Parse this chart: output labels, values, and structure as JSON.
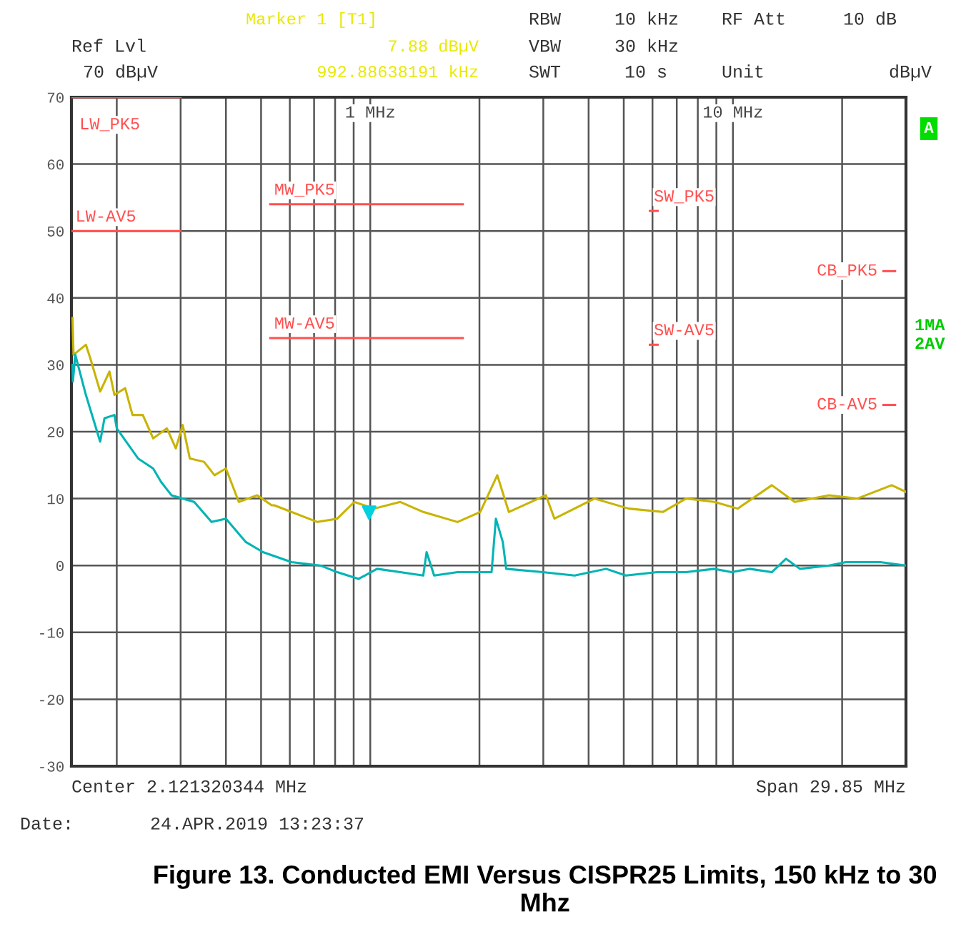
{
  "chart_data": {
    "type": "line",
    "title": "Figure 13. Conducted EMI Versus CISPR25 Limits, 150 kHz to 30 Mhz",
    "log": "x",
    "grid": true,
    "legend": false,
    "xlim": [
      0.15,
      30
    ],
    "xticks": [
      {
        "value": 0.2,
        "label": null
      },
      {
        "value": 0.3,
        "label": null
      },
      {
        "value": 0.4,
        "label": null
      },
      {
        "value": 0.5,
        "label": null
      },
      {
        "value": 0.6,
        "label": null
      },
      {
        "value": 0.7,
        "label": null
      },
      {
        "value": 0.8,
        "label": null
      },
      {
        "value": 0.9,
        "label": null
      },
      {
        "value": 1,
        "label": "1 MHz"
      },
      {
        "value": 2,
        "label": null
      },
      {
        "value": 3,
        "label": null
      },
      {
        "value": 4,
        "label": null
      },
      {
        "value": 5,
        "label": null
      },
      {
        "value": 6,
        "label": null
      },
      {
        "value": 7,
        "label": null
      },
      {
        "value": 8,
        "label": null
      },
      {
        "value": 9,
        "label": null
      },
      {
        "value": 10,
        "label": "10 MHz"
      },
      {
        "value": 20,
        "label": null
      }
    ],
    "ylim": [
      -30,
      70
    ],
    "yticks": [
      -30,
      -20,
      -10,
      0,
      10,
      20,
      30,
      40,
      50,
      60,
      70
    ],
    "series": [
      {
        "color": "#c8b400",
        "x": [
          0.151,
          0.152,
          0.1644,
          0.169,
          0.18,
          0.191,
          0.197,
          0.211,
          0.221,
          0.236,
          0.252,
          0.275,
          0.291,
          0.304,
          0.318,
          0.348,
          0.372,
          0.4,
          0.434,
          0.488,
          0.535,
          0.544,
          0.715,
          0.811,
          0.904,
          1.025,
          1.21,
          1.4,
          1.74,
          2.01,
          2.24,
          2.41,
          3.05,
          3.22,
          4.15,
          5.16,
          6.41,
          7.42,
          8.89,
          10.3,
          12.8,
          14.8,
          18.4,
          22.0,
          27.4,
          30
        ],
        "values": [
          37,
          31.5,
          33,
          31,
          26,
          29,
          25.5,
          26.5,
          22.5,
          22.5,
          19,
          20.5,
          17.5,
          21,
          16,
          15.5,
          13.5,
          14.5,
          9.5,
          10.5,
          9,
          9,
          6.5,
          7,
          9.5,
          8.5,
          9.5,
          8,
          6.5,
          8,
          13.5,
          8,
          10.5,
          7,
          10,
          8.5,
          8,
          10,
          9.5,
          8.5,
          12,
          9.5,
          10.5,
          10,
          12,
          11
        ]
      },
      {
        "color": "#00b4b4",
        "x": [
          0.151,
          0.1514,
          0.1537,
          0.1644,
          0.18,
          0.185,
          0.197,
          0.2,
          0.229,
          0.252,
          0.265,
          0.283,
          0.327,
          0.365,
          0.4,
          0.454,
          0.506,
          0.607,
          0.728,
          0.811,
          0.929,
          1.044,
          1.21,
          1.4,
          1.43,
          1.5,
          1.74,
          2.16,
          2.22,
          2.32,
          2.37,
          2.99,
          3.66,
          4.47,
          5.07,
          6.18,
          7.42,
          8.89,
          9.91,
          11.1,
          12.8,
          14.0,
          15.3,
          18.4,
          20.5,
          25.5,
          30
        ],
        "values": [
          30,
          27.5,
          31.5,
          25.5,
          18.5,
          22,
          22.5,
          20.5,
          16,
          14.5,
          12.5,
          10.5,
          9.5,
          6.5,
          7,
          3.5,
          2,
          0.5,
          0,
          -1,
          -2,
          -0.5,
          -1,
          -1.5,
          2,
          -1.5,
          -1,
          -1,
          7,
          3.5,
          -0.5,
          -1,
          -1.5,
          -0.5,
          -1.5,
          -1,
          -1,
          -0.5,
          -1,
          -0.5,
          -1,
          1,
          -0.5,
          0,
          0.5,
          0.5,
          0
        ]
      },
      {
        "type": "scatter",
        "marker": "triangle",
        "color": "#00d0e0",
        "x": [
          0.993
        ],
        "values": [
          7.88
        ]
      },
      {
        "name": "LW_PK5",
        "color": "#ff5050",
        "x": [
          0.15,
          0.3
        ],
        "values": [
          70,
          70
        ]
      },
      {
        "name": "LW-AV5",
        "color": "#ff5050",
        "x": [
          0.15,
          0.3
        ],
        "values": [
          50,
          50
        ]
      },
      {
        "name": "MW_PK5",
        "color": "#ff5050",
        "x": [
          0.53,
          1.8
        ],
        "values": [
          54,
          54
        ]
      },
      {
        "name": "MW-AV5",
        "color": "#ff5050",
        "x": [
          0.53,
          1.8
        ],
        "values": [
          34,
          34
        ]
      },
      {
        "name": "SW_PK5",
        "color": "#ff5050",
        "x": [
          5.9,
          6.2
        ],
        "values": [
          53,
          53
        ]
      },
      {
        "name": "SW-AV5",
        "color": "#ff5050",
        "x": [
          5.9,
          6.2
        ],
        "values": [
          33,
          33
        ]
      },
      {
        "name": "CB_PK5",
        "color": "#ff5050",
        "x": [
          26,
          28
        ],
        "values": [
          44,
          44
        ]
      },
      {
        "name": "CB-AV5",
        "color": "#ff5050",
        "x": [
          26,
          28
        ],
        "values": [
          24,
          24
        ]
      }
    ],
    "annotations": [
      "Marker 1 [T1]",
      "Ref Lvl",
      "7.88 dBµV",
      "70 dBµV",
      "992.88638191 kHz",
      "RBW",
      "10 kHz",
      "RF Att",
      "10 dB",
      "VBW",
      "30 kHz",
      "SWT",
      "10 s",
      "Unit",
      "dBµV",
      "Center 2.121320344 MHz",
      "Span 29.85 MHz",
      "Date:",
      "24.APR.2019",
      "13:23:37",
      "A",
      "1MA",
      "2AV"
    ]
  }
}
